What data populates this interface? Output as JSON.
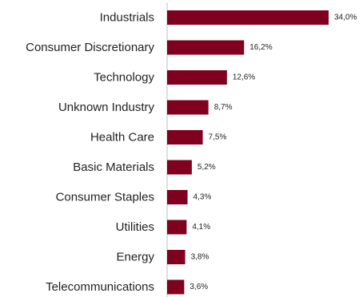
{
  "chart_data": {
    "type": "bar",
    "orientation": "horizontal",
    "title": "",
    "xlabel": "",
    "ylabel": "",
    "xlim": [
      0,
      34
    ],
    "grid": false,
    "legend": "none",
    "bar_color": "#800020",
    "categories": [
      "Industrials",
      "Consumer Discretionary",
      "Technology",
      "Unknown Industry",
      "Health Care",
      "Basic Materials",
      "Consumer Staples",
      "Utilities",
      "Energy",
      "Telecommunications"
    ],
    "values": [
      34.0,
      16.2,
      12.6,
      8.7,
      7.5,
      5.2,
      4.3,
      4.1,
      3.8,
      3.6
    ],
    "value_labels": [
      "34,0%",
      "16,2%",
      "12,6%",
      "8,7%",
      "7,5%",
      "5,2%",
      "4,3%",
      "4,1%",
      "3,8%",
      "3,6%"
    ]
  }
}
